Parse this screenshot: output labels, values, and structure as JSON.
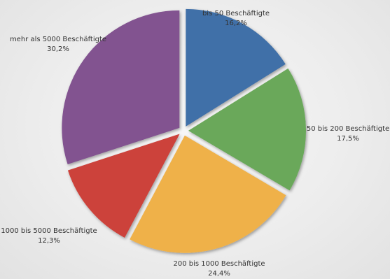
{
  "chart_data": {
    "type": "pie",
    "title": "",
    "exploded": true,
    "slices": [
      {
        "label": "bis 50 Beschäftigte",
        "value": 16.2,
        "value_label": "16,2%",
        "color": "#3f6fa8"
      },
      {
        "label": "50 bis 200 Beschäftigte",
        "value": 17.5,
        "value_label": "17,5%",
        "color": "#6ba85a"
      },
      {
        "label": "200 bis 1000 Beschäftigte",
        "value": 24.4,
        "value_label": "24,4%",
        "color": "#efb148"
      },
      {
        "label": "1000 bis 5000 Beschäftigte",
        "value": 12.3,
        "value_label": "12,3%",
        "color": "#cc433b"
      },
      {
        "label": "mehr als 5000 Beschäftigte",
        "value": 30.2,
        "value_label": "30,2%",
        "color": "#825290"
      }
    ]
  }
}
